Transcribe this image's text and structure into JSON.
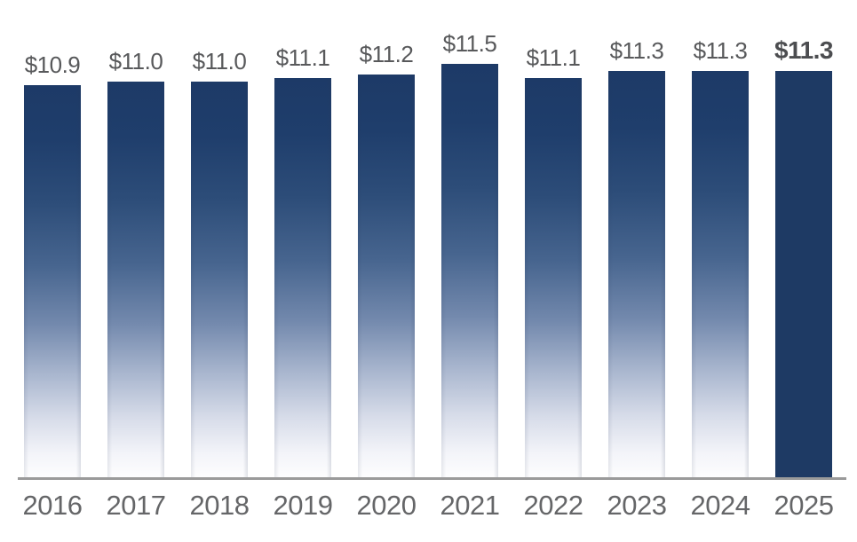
{
  "chart_data": {
    "type": "bar",
    "title": "",
    "xlabel": "",
    "ylabel": "",
    "categories": [
      "2016",
      "2017",
      "2018",
      "2019",
      "2020",
      "2021",
      "2022",
      "2023",
      "2024",
      "2025"
    ],
    "values": [
      10.9,
      11.0,
      11.0,
      11.1,
      11.2,
      11.5,
      11.1,
      11.3,
      11.3,
      11.3
    ],
    "value_labels": [
      "$10.9",
      "$11.0",
      "$11.0",
      "$11.1",
      "$11.2",
      "$11.5",
      "$11.1",
      "$11.3",
      "$11.3",
      "$11.3"
    ],
    "highlight_index": 9,
    "ylim": [
      0,
      11.5
    ],
    "grid": false,
    "legend": "none",
    "layout": {
      "bar_style": "vertical gradient navy-to-white, final bar solid navy",
      "value_labels_position": "above bars",
      "axis_line": "x-axis only"
    },
    "colors": {
      "bar_gradient_top": "#1d3a67",
      "bar_gradient_mid": "#47658f",
      "bar_gradient_bottom": "#fdfdfe",
      "bar_solid_highlight": "#1e3a64",
      "value_label": "#58595b",
      "value_label_highlight": "#4c4d50",
      "year_label": "#656668",
      "axis_line": "#9a9a9a"
    }
  }
}
